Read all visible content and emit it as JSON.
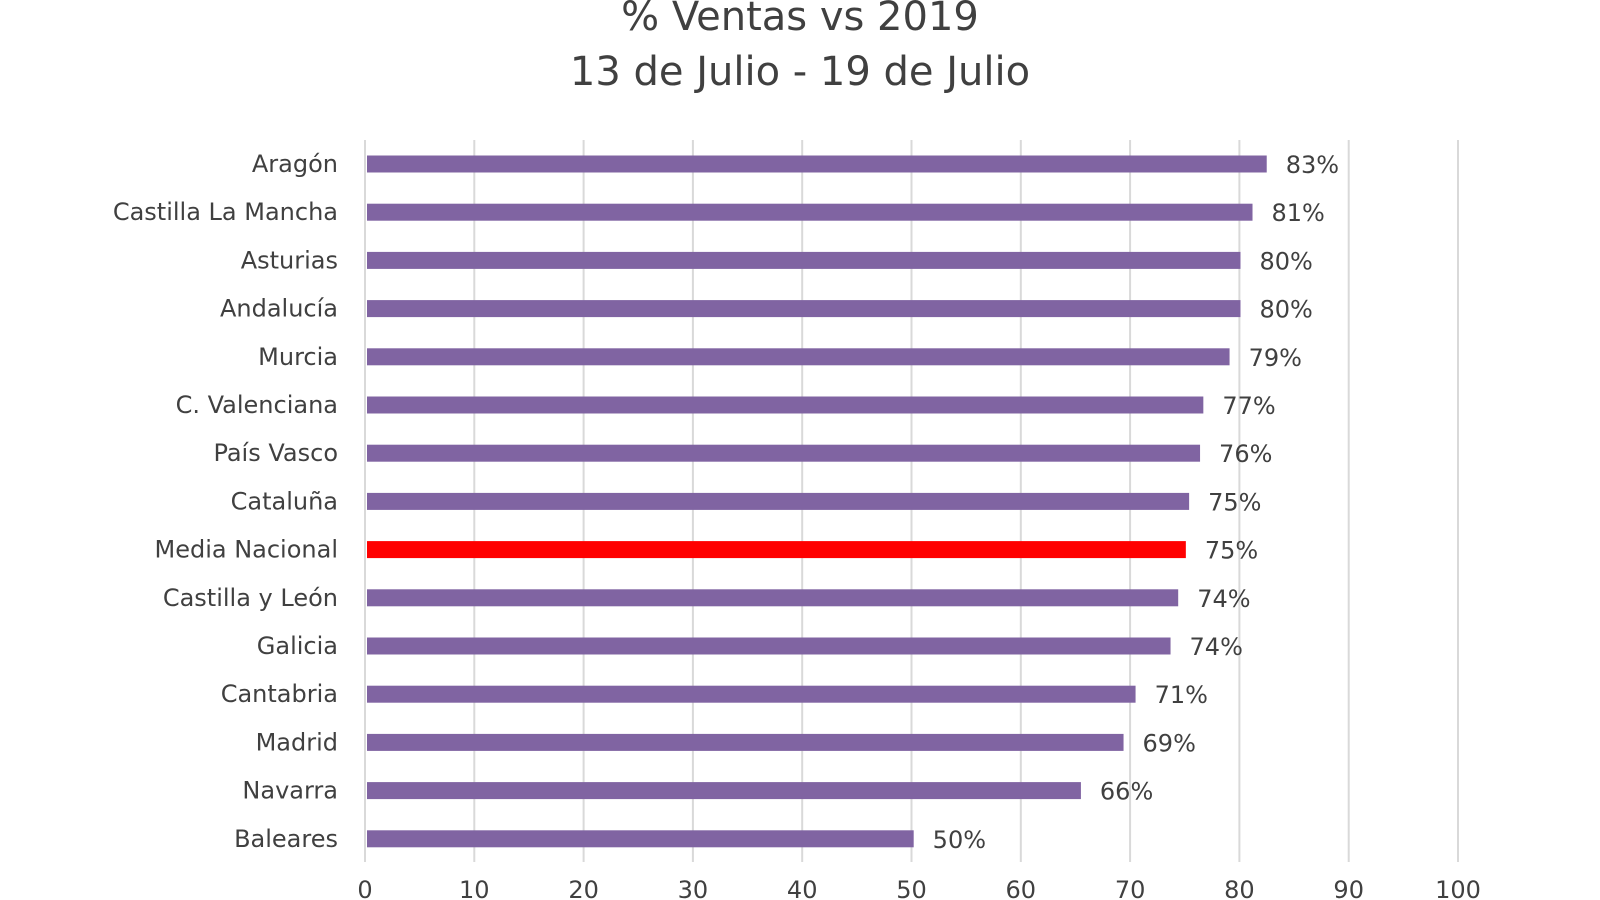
{
  "chart_data": {
    "type": "bar",
    "orientation": "horizontal",
    "title": "% Ventas vs 2019",
    "subtitle": "13 de Julio - 19 de Julio",
    "xlabel": "",
    "ylabel": "",
    "categories": [
      "Aragón",
      "Castilla La Mancha",
      "Asturias",
      "Andalucía",
      "Murcia",
      "C. Valenciana",
      "País Vasco",
      "Cataluña",
      "Media Nacional",
      "Castilla y León",
      "Galicia",
      "Cantabria",
      "Madrid",
      "Navarra",
      "Baleares"
    ],
    "values": [
      82.5,
      81.2,
      80.1,
      80.1,
      79.1,
      76.7,
      76.4,
      75.4,
      75.1,
      74.4,
      73.7,
      70.5,
      69.4,
      65.5,
      50.2
    ],
    "data_labels": [
      "83%",
      "81%",
      "80%",
      "80%",
      "79%",
      "77%",
      "76%",
      "75%",
      "75%",
      "74%",
      "74%",
      "71%",
      "69%",
      "66%",
      "50%"
    ],
    "highlight_category": "Media Nacional",
    "bar_color": "#8064a2",
    "highlight_color": "#ff0000",
    "grid_color": "#d9d9d9",
    "text_color": "#404040",
    "xlim": [
      0,
      100
    ],
    "xticks": [
      0,
      10,
      20,
      30,
      40,
      50,
      60,
      70,
      80,
      90,
      100
    ],
    "xtick_labels": [
      "0",
      "10",
      "20",
      "30",
      "40",
      "50",
      "60",
      "70",
      "80",
      "90",
      "100"
    ],
    "grid": "vertical",
    "legend": "none"
  }
}
